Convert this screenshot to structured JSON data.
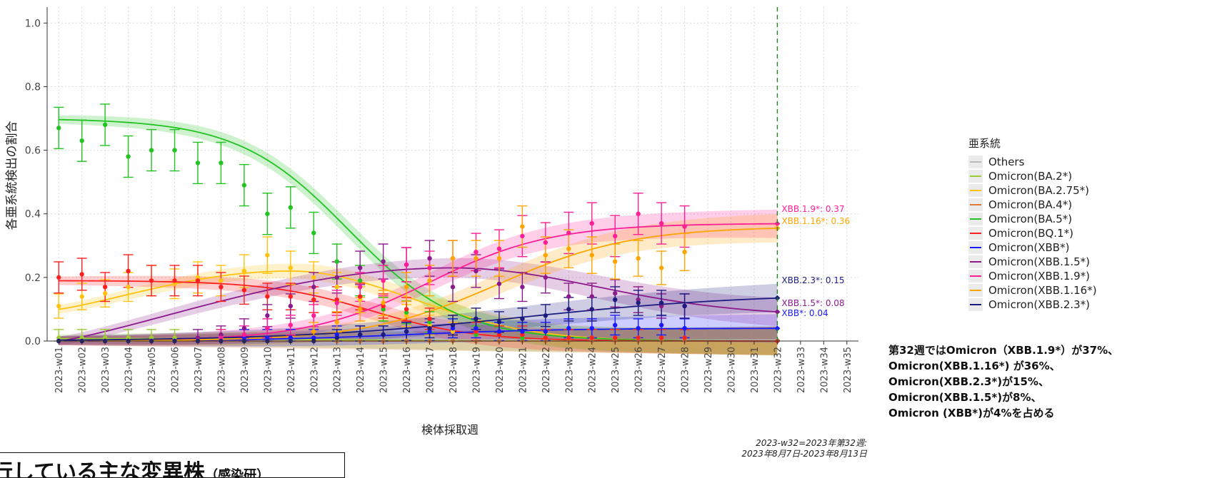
{
  "chart_data": {
    "type": "line",
    "xlabel": "検体採取週",
    "ylabel": "各亜系統検出の割合",
    "ylim": [
      0,
      1.05
    ],
    "y_ticks": [
      0.0,
      0.2,
      0.4,
      0.6,
      0.8,
      1.0
    ],
    "y_tick_labels": [
      "0.0",
      "0.2",
      "0.4",
      "0.6",
      "0.8",
      "1.0"
    ],
    "categories": [
      "2023-w01",
      "2023-w02",
      "2023-w03",
      "2023-w04",
      "2023-w05",
      "2023-w06",
      "2023-w07",
      "2023-w08",
      "2023-w09",
      "2023-w10",
      "2023-w11",
      "2023-w12",
      "2023-w13",
      "2023-w14",
      "2023-w15",
      "2023-w16",
      "2023-w17",
      "2023-w18",
      "2023-w19",
      "2023-w20",
      "2023-w21",
      "2023-w22",
      "2023-w23",
      "2023-w24",
      "2023-w25",
      "2023-w26",
      "2023-w27",
      "2023-w28",
      "2023-w29",
      "2023-w30",
      "2023-w31",
      "2023-w32",
      "2023-w33",
      "2023-w34",
      "2023-w35"
    ],
    "reference_week": "2023-w32",
    "grid": true,
    "legend_title": "亜系統",
    "legend_position": "right",
    "series": [
      {
        "name": "Others",
        "color": "#bbbbbb",
        "fit_start": 0.003,
        "fit_end": 0.003,
        "fit_mid": 10,
        "fit_k": 0.2,
        "observed": [
          0.0,
          0.0,
          0.0,
          0.0,
          0.0,
          0.0,
          0.0,
          0.0,
          0.0,
          0.0,
          0.0,
          0.0,
          0.0,
          0.0,
          0.0,
          0.0,
          0.0,
          0.0,
          0.0,
          0.0,
          0.0,
          0.0,
          0.0,
          0.0,
          0.0,
          0.0,
          0.0,
          0.0
        ]
      },
      {
        "name": "Omicron(BA.2*)",
        "color": "#9acd32",
        "fit_start": 0.008,
        "fit_end": 0.0,
        "fit_mid": 12,
        "fit_k": 0.3,
        "observed": [
          0.01,
          0.01,
          0.01,
          0.01,
          0.01,
          0.01,
          0.0,
          0.01,
          0.0,
          0.0,
          0.0,
          0.0,
          0.0,
          0.0,
          0.0,
          0.0,
          0.0,
          0.0,
          0.0,
          0.0,
          0.0,
          0.0,
          0.0,
          0.0,
          0.0,
          0.0,
          0.0,
          0.0
        ]
      },
      {
        "name": "Omicron(BA.2.75*)",
        "color": "#ffc20e",
        "fit_start": 0.1,
        "fit_end": 0.0,
        "fit_mid": 17,
        "fit_k": 0.55,
        "bump": true,
        "observed": [
          0.11,
          0.14,
          0.15,
          0.17,
          0.19,
          0.18,
          0.2,
          0.19,
          0.22,
          0.27,
          0.23,
          0.2,
          0.17,
          0.13,
          0.1,
          0.08,
          0.05,
          0.03,
          0.02,
          0.02,
          0.01,
          0.01,
          0.01,
          0.01,
          0.01,
          0.01,
          0.0,
          0.0
        ]
      },
      {
        "name": "Omicron(BA.4*)",
        "color": "#e07a3a",
        "fit_start": 0.0,
        "fit_end": 0.0,
        "fit_mid": 10,
        "fit_k": 0.3,
        "observed": [
          0.0,
          0.0,
          0.0,
          0.0,
          0.0,
          0.0,
          0.0,
          0.0,
          0.0,
          0.0,
          0.0,
          0.0,
          0.0,
          0.0,
          0.0,
          0.0,
          0.0,
          0.0,
          0.0,
          0.0,
          0.0,
          0.0,
          0.0,
          0.0,
          0.0,
          0.0,
          0.0,
          0.0
        ]
      },
      {
        "name": "Omicron(BA.5*)",
        "color": "#22c322",
        "fit_start": 0.7,
        "fit_end": 0.0,
        "fit_mid": 12.5,
        "fit_k": 0.42,
        "observed": [
          0.67,
          0.63,
          0.68,
          0.58,
          0.6,
          0.6,
          0.56,
          0.56,
          0.49,
          0.4,
          0.42,
          0.34,
          0.25,
          0.19,
          0.1,
          0.09,
          0.06,
          0.04,
          0.02,
          0.02,
          0.01,
          0.01,
          0.01,
          0.01,
          0.01,
          0.01,
          0.01,
          0.01
        ]
      },
      {
        "name": "Omicron(BQ.1*)",
        "color": "#ff2020",
        "fit_start": 0.19,
        "fit_end": 0.0,
        "fit_mid": 13.5,
        "fit_k": 0.45,
        "observed": [
          0.2,
          0.21,
          0.17,
          0.22,
          0.19,
          0.19,
          0.19,
          0.17,
          0.16,
          0.14,
          0.14,
          0.13,
          0.13,
          0.14,
          0.11,
          0.1,
          0.07,
          0.05,
          0.03,
          0.02,
          0.02,
          0.01,
          0.01,
          0.01,
          0.01,
          0.01,
          0.01,
          0.01
        ]
      },
      {
        "name": "Omicron(XBB*)",
        "color": "#1a1aff",
        "fit_start": 0.0,
        "fit_end": 0.04,
        "fit_mid": 15,
        "fit_k": 0.3,
        "observed": [
          0.0,
          0.0,
          0.0,
          0.0,
          0.0,
          0.0,
          0.0,
          0.0,
          0.01,
          0.01,
          0.01,
          0.01,
          0.02,
          0.02,
          0.02,
          0.03,
          0.03,
          0.04,
          0.04,
          0.03,
          0.03,
          0.03,
          0.04,
          0.04,
          0.05,
          0.04,
          0.05,
          0.04
        ]
      },
      {
        "name": "Omicron(XBB.1.5*)",
        "color": "#8b1a8b",
        "fit_start": 0.0,
        "fit_end": 0.08,
        "fit_mid": 14,
        "fit_k": 0.35,
        "bump": true,
        "observed": [
          0.0,
          0.0,
          0.0,
          0.0,
          0.0,
          0.0,
          0.01,
          0.02,
          0.04,
          0.08,
          0.11,
          0.17,
          0.2,
          0.23,
          0.25,
          0.24,
          0.26,
          0.17,
          0.22,
          0.18,
          0.17,
          0.2,
          0.14,
          0.14,
          0.15,
          0.13,
          0.11,
          0.11
        ]
      },
      {
        "name": "Omicron(XBB.1.9*)",
        "color": "#ff1e96",
        "fit_start": 0.0,
        "fit_end": 0.37,
        "fit_mid": 16,
        "fit_k": 0.38,
        "observed": [
          0.0,
          0.0,
          0.0,
          0.0,
          0.0,
          0.0,
          0.0,
          0.01,
          0.02,
          0.04,
          0.05,
          0.08,
          0.12,
          0.17,
          0.19,
          0.24,
          0.23,
          0.26,
          0.28,
          0.29,
          0.33,
          0.31,
          0.34,
          0.37,
          0.33,
          0.4,
          0.37,
          0.36
        ]
      },
      {
        "name": "Omicron(XBB.1.16*)",
        "color": "#ffa500",
        "fit_start": 0.0,
        "fit_end": 0.36,
        "fit_mid": 19,
        "fit_k": 0.35,
        "observed": [
          0.0,
          0.0,
          0.0,
          0.0,
          0.0,
          0.0,
          0.0,
          0.0,
          0.0,
          0.0,
          0.0,
          0.03,
          0.06,
          0.1,
          0.12,
          0.17,
          0.19,
          0.26,
          0.26,
          0.26,
          0.36,
          0.27,
          0.29,
          0.27,
          0.25,
          0.26,
          0.23,
          0.28
        ]
      },
      {
        "name": "Omicron(XBB.2.3*)",
        "color": "#1c1c80",
        "fit_start": 0.0,
        "fit_end": 0.15,
        "fit_mid": 20,
        "fit_k": 0.2,
        "observed": [
          0.0,
          0.0,
          0.0,
          0.0,
          0.0,
          0.0,
          0.0,
          0.0,
          0.0,
          0.0,
          0.0,
          0.0,
          0.01,
          0.02,
          0.02,
          0.03,
          0.04,
          0.05,
          0.07,
          0.06,
          0.07,
          0.08,
          0.1,
          0.1,
          0.13,
          0.12,
          0.12,
          0.11
        ]
      }
    ],
    "end_labels": [
      {
        "text": "XBB.1.9*: 0.37",
        "value": 0.37,
        "color": "#ff1e96"
      },
      {
        "text": "XBB.1.16*: 0.36",
        "value": 0.36,
        "color": "#ffa500"
      },
      {
        "text": "XBB.2.3*: 0.15",
        "value": 0.15,
        "color": "#1c1c80"
      },
      {
        "text": "XBB.1.5*: 0.08",
        "value": 0.08,
        "color": "#8b1a8b"
      },
      {
        "text": "XBB*: 0.04",
        "value": 0.04,
        "color": "#1a1aff"
      }
    ]
  },
  "legend": {
    "title": "亜系統",
    "items": [
      {
        "label": "Others",
        "color": "#bbbbbb"
      },
      {
        "label": "Omicron(BA.2*)",
        "color": "#9acd32"
      },
      {
        "label": "Omicron(BA.2.75*)",
        "color": "#ffc20e"
      },
      {
        "label": "Omicron(BA.4*)",
        "color": "#e07a3a"
      },
      {
        "label": "Omicron(BA.5*)",
        "color": "#22c322"
      },
      {
        "label": "Omicron(BQ.1*)",
        "color": "#ff2020"
      },
      {
        "label": "Omicron(XBB*)",
        "color": "#1a1aff"
      },
      {
        "label": "Omicron(XBB.1.5*)",
        "color": "#8b1a8b"
      },
      {
        "label": "Omicron(XBB.1.9*)",
        "color": "#ff1e96"
      },
      {
        "label": "Omicron(XBB.1.16*)",
        "color": "#ffa500"
      },
      {
        "label": "Omicron(XBB.2.3*)",
        "color": "#1c1c80"
      }
    ]
  },
  "summary": {
    "lines": [
      "第32週ではOmicron（XBB.1.9*）が37%、",
      "Omicron(XBB.1.16*) が36%、",
      "Omicron(XBB.2.3*)が15%、",
      "Omicron(XBB.1.5*)が8%、",
      "Omicron (XBB*)が4%を占める"
    ]
  },
  "week_note": {
    "line1": "2023-w32=2023年第32週:",
    "line2": "2023年8月7日-2023年8月13日"
  },
  "banner": {
    "main": "行している主な変異株",
    "source": "（感染研）"
  }
}
